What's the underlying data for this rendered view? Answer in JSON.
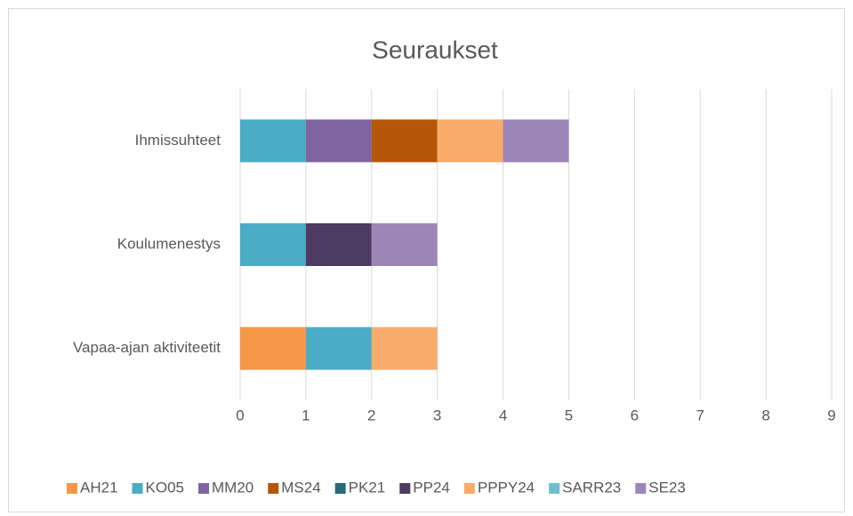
{
  "chart_data": {
    "type": "stacked_barh",
    "title": "Seuraukset",
    "categories": [
      "Ihmissuhteet",
      "Koulumenestys",
      "Vapaa-ajan aktiviteetit"
    ],
    "series": [
      {
        "name": "AH21",
        "color": "#f79646",
        "values": [
          null,
          null,
          1
        ]
      },
      {
        "name": "KO05",
        "color": "#4bacc6",
        "values": [
          1,
          1,
          1
        ]
      },
      {
        "name": "MM20",
        "color": "#8064a2",
        "values": [
          1,
          null,
          null
        ]
      },
      {
        "name": "MS24",
        "color": "#b65708",
        "values": [
          1,
          null,
          null
        ]
      },
      {
        "name": "PK21",
        "color": "#276a7c",
        "values": [
          null,
          null,
          null
        ]
      },
      {
        "name": "PP24",
        "color": "#4d3b62",
        "values": [
          null,
          1,
          null
        ]
      },
      {
        "name": "PPPY24",
        "color": "#f9ab6b",
        "values": [
          1,
          null,
          1
        ]
      },
      {
        "name": "SARR23",
        "color": "#6fbdd1",
        "values": [
          null,
          null,
          null
        ]
      },
      {
        "name": "SE23",
        "color": "#9c86b8",
        "values": [
          1,
          1,
          null
        ]
      }
    ],
    "xlim": [
      0,
      9
    ],
    "xticks": [
      0,
      1,
      2,
      3,
      4,
      5,
      6,
      7,
      8,
      9
    ],
    "grid": true,
    "legend": "bottom"
  }
}
